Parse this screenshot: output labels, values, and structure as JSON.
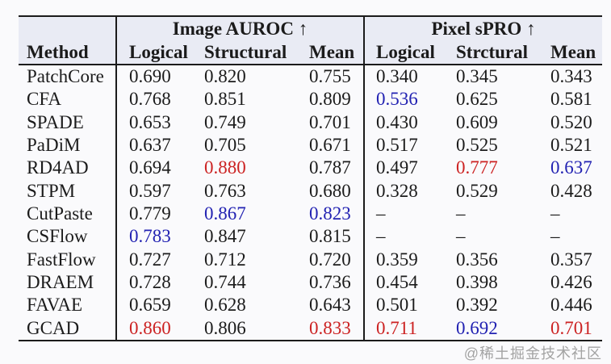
{
  "table": {
    "group_headers": [
      {
        "label": "Image AUROC ↑"
      },
      {
        "label": "Pixel sPRO ↑"
      }
    ],
    "col_headers": [
      "Method",
      "Logical",
      "Structural",
      "Mean",
      "Logical",
      "Strctural",
      "Mean"
    ],
    "rows": [
      {
        "method": "PatchCore",
        "values": [
          {
            "text": "0.690"
          },
          {
            "text": "0.820"
          },
          {
            "text": "0.755"
          },
          {
            "text": "0.340"
          },
          {
            "text": "0.345"
          },
          {
            "text": "0.343"
          }
        ]
      },
      {
        "method": "CFA",
        "values": [
          {
            "text": "0.768"
          },
          {
            "text": "0.851"
          },
          {
            "text": "0.809"
          },
          {
            "text": "0.536",
            "color": "blue"
          },
          {
            "text": "0.625"
          },
          {
            "text": "0.581"
          }
        ]
      },
      {
        "method": "SPADE",
        "values": [
          {
            "text": "0.653"
          },
          {
            "text": "0.749"
          },
          {
            "text": "0.701"
          },
          {
            "text": "0.430"
          },
          {
            "text": "0.609"
          },
          {
            "text": "0.520"
          }
        ]
      },
      {
        "method": "PaDiM",
        "values": [
          {
            "text": "0.637"
          },
          {
            "text": "0.705"
          },
          {
            "text": "0.671"
          },
          {
            "text": "0.517"
          },
          {
            "text": "0.525"
          },
          {
            "text": "0.521"
          }
        ]
      },
      {
        "method": "RD4AD",
        "values": [
          {
            "text": "0.694"
          },
          {
            "text": "0.880",
            "color": "red"
          },
          {
            "text": "0.787"
          },
          {
            "text": "0.497"
          },
          {
            "text": "0.777",
            "color": "red"
          },
          {
            "text": "0.637",
            "color": "blue"
          }
        ]
      },
      {
        "method": "STPM",
        "values": [
          {
            "text": "0.597"
          },
          {
            "text": "0.763"
          },
          {
            "text": "0.680"
          },
          {
            "text": "0.328"
          },
          {
            "text": "0.529"
          },
          {
            "text": "0.428"
          }
        ]
      },
      {
        "method": "CutPaste",
        "values": [
          {
            "text": "0.779"
          },
          {
            "text": "0.867",
            "color": "blue"
          },
          {
            "text": "0.823",
            "color": "blue"
          },
          {
            "text": "–"
          },
          {
            "text": "–"
          },
          {
            "text": "–"
          }
        ]
      },
      {
        "method": "CSFlow",
        "values": [
          {
            "text": "0.783",
            "color": "blue"
          },
          {
            "text": "0.847"
          },
          {
            "text": "0.815"
          },
          {
            "text": "–"
          },
          {
            "text": "–"
          },
          {
            "text": "–"
          }
        ]
      },
      {
        "method": "FastFlow",
        "values": [
          {
            "text": "0.727"
          },
          {
            "text": "0.712"
          },
          {
            "text": "0.720"
          },
          {
            "text": "0.359"
          },
          {
            "text": "0.356"
          },
          {
            "text": "0.357"
          }
        ]
      },
      {
        "method": "DRAEM",
        "values": [
          {
            "text": "0.728"
          },
          {
            "text": "0.744"
          },
          {
            "text": "0.736"
          },
          {
            "text": "0.454"
          },
          {
            "text": "0.398"
          },
          {
            "text": "0.426"
          }
        ]
      },
      {
        "method": "FAVAE",
        "values": [
          {
            "text": "0.659"
          },
          {
            "text": "0.628"
          },
          {
            "text": "0.643"
          },
          {
            "text": "0.501"
          },
          {
            "text": "0.392"
          },
          {
            "text": "0.446"
          }
        ]
      },
      {
        "method": "GCAD",
        "values": [
          {
            "text": "0.860",
            "color": "red"
          },
          {
            "text": "0.806"
          },
          {
            "text": "0.833",
            "color": "red"
          },
          {
            "text": "0.711",
            "color": "red"
          },
          {
            "text": "0.692",
            "color": "blue"
          },
          {
            "text": "0.701",
            "color": "red"
          }
        ]
      }
    ]
  },
  "colors": {
    "red": "#cc2222",
    "blue": "#2222b2",
    "text": "#1b1b1b",
    "header_bg": "#e9ebf4",
    "rule": "#1b1b1b"
  },
  "watermark": "@稀土掘金技术社区"
}
